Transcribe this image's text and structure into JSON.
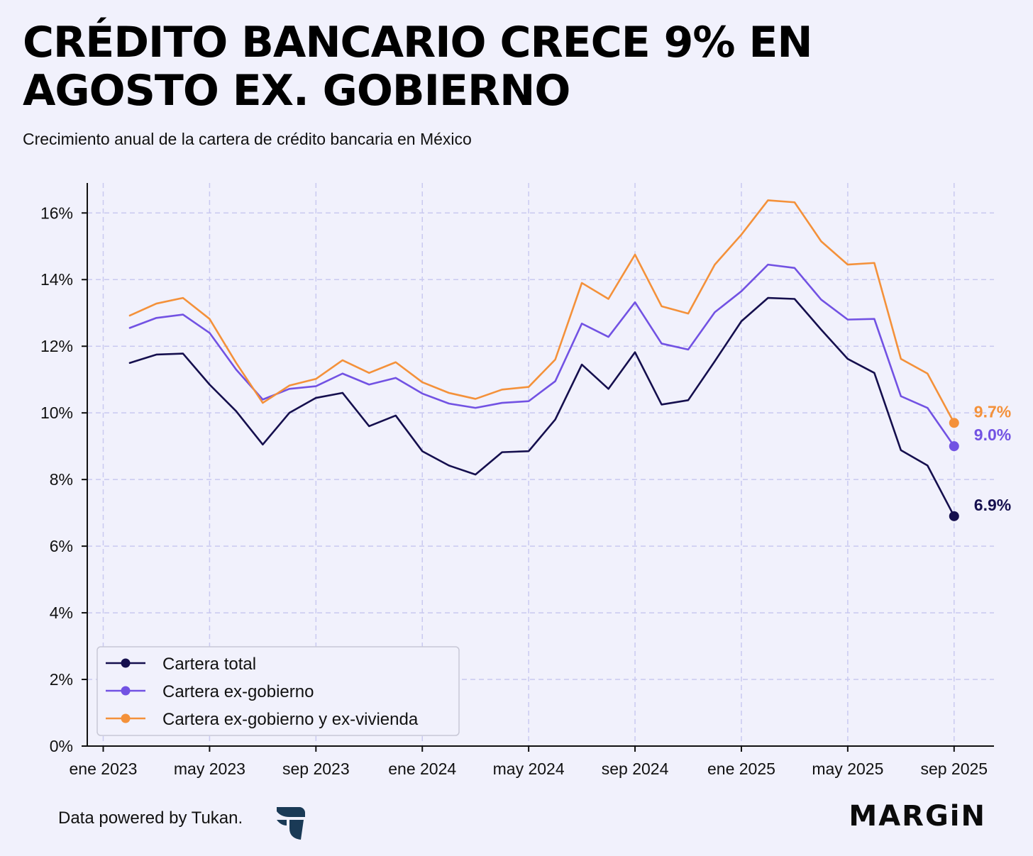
{
  "header": {
    "title": "CRÉDITO BANCARIO CRECE 9% EN AGOSTO EX. GOBIERNO",
    "subtitle": "Crecimiento anual de la cartera de crédito bancaria en México"
  },
  "footer": {
    "source": "Data powered by Tukan.",
    "brand": "MARGiN",
    "logo_icon": "tukan-logo-icon"
  },
  "colors": {
    "background": "#f1f1fc",
    "grid": "#c9c9f0",
    "total": "#150f4e",
    "exgob": "#7252e3",
    "exviv": "#f4913a"
  },
  "chart_data": {
    "type": "line",
    "title": "CRÉDITO BANCARIO CRECE 9% EN AGOSTO EX. GOBIERNO",
    "xlabel": "",
    "ylabel": "",
    "ylim": [
      0,
      16.9
    ],
    "y_ticks": [
      0,
      2,
      4,
      6,
      8,
      10,
      12,
      14,
      16
    ],
    "y_tick_labels": [
      "0%",
      "2%",
      "4%",
      "6%",
      "8%",
      "10%",
      "12%",
      "14%",
      "16%"
    ],
    "x_ticks": [
      0,
      4,
      8,
      12,
      16,
      20,
      24,
      28,
      32
    ],
    "x_tick_labels": [
      "ene 2023",
      "may 2023",
      "sep 2023",
      "ene 2024",
      "may 2024",
      "sep 2024",
      "ene 2025",
      "may 2025",
      "sep 2025"
    ],
    "x_range": [
      -0.6,
      33.5
    ],
    "x": [
      1,
      2,
      3,
      4,
      5,
      6,
      7,
      8,
      9,
      10,
      11,
      12,
      13,
      14,
      15,
      16,
      17,
      18,
      19,
      20,
      21,
      22,
      23,
      24,
      25,
      26,
      27,
      28,
      29,
      30,
      31,
      32
    ],
    "legend_position": "bottom-left",
    "grid": true,
    "series": [
      {
        "name": "Cartera total",
        "key": "total",
        "end_label": "6.9%",
        "values": [
          11.5,
          11.75,
          11.78,
          10.85,
          10.05,
          9.05,
          10.0,
          10.45,
          10.6,
          9.6,
          9.92,
          8.85,
          8.42,
          8.15,
          8.82,
          8.85,
          9.8,
          11.45,
          10.72,
          11.82,
          10.25,
          10.38,
          11.55,
          12.75,
          13.45,
          13.42,
          12.5,
          11.62,
          11.2,
          8.88,
          8.42,
          6.9
        ]
      },
      {
        "name": "Cartera ex-gobierno",
        "key": "exgob",
        "end_label": "9.0%",
        "values": [
          12.55,
          12.85,
          12.95,
          12.4,
          11.3,
          10.4,
          10.72,
          10.8,
          11.18,
          10.85,
          11.05,
          10.58,
          10.28,
          10.15,
          10.3,
          10.35,
          10.95,
          12.68,
          12.28,
          13.32,
          12.08,
          11.9,
          13.02,
          13.65,
          14.45,
          14.35,
          13.4,
          12.8,
          12.82,
          10.5,
          10.15,
          9.0
        ]
      },
      {
        "name": "Cartera ex-gobierno y ex-vivienda",
        "key": "exviv",
        "end_label": "9.7%",
        "values": [
          12.92,
          13.28,
          13.45,
          12.82,
          11.5,
          10.3,
          10.82,
          11.02,
          11.58,
          11.2,
          11.52,
          10.92,
          10.6,
          10.42,
          10.7,
          10.78,
          11.6,
          13.9,
          13.42,
          14.75,
          13.2,
          12.98,
          14.45,
          15.35,
          16.38,
          16.32,
          15.15,
          14.45,
          14.5,
          11.62,
          11.18,
          9.7
        ]
      }
    ]
  }
}
